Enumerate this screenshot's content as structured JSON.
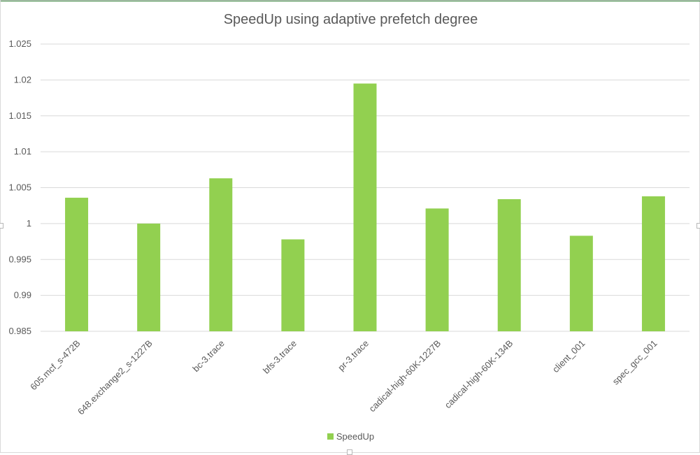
{
  "chart_data": {
    "type": "bar",
    "title": "SpeedUp using adaptive prefetch degree",
    "xlabel": "",
    "ylabel": "",
    "categories": [
      "605.mcf_s-472B",
      "648.exchange2_s-1227B",
      "bc-3.trace",
      "bfs-3.trace",
      "pr-3.trace",
      "cadical-high-60K-1227B",
      "cadical-high-60K-134B",
      "client_001",
      "spec_gcc_001"
    ],
    "series": [
      {
        "name": "SpeedUp",
        "values": [
          1.0036,
          1.0,
          1.0063,
          0.9978,
          1.0195,
          1.0021,
          1.0034,
          0.9983,
          1.0038
        ],
        "color": "#92d050"
      }
    ],
    "ylim": [
      0.985,
      1.025
    ],
    "yticks": [
      "0.985",
      "0.99",
      "0.995",
      "1",
      "1.005",
      "1.01",
      "1.015",
      "1.02",
      "1.025"
    ],
    "grid": true,
    "legend_position": "bottom"
  }
}
